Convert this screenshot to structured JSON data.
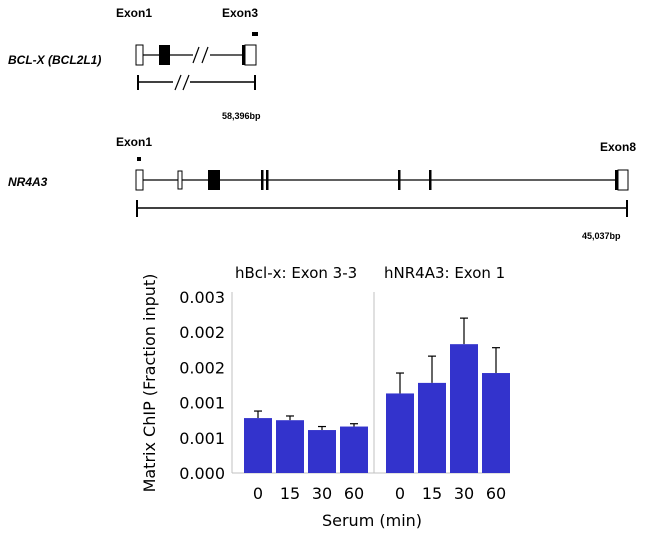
{
  "genes": {
    "bclx": {
      "name": "BCL-X (BCL2L1)",
      "exon_left_label": "Exon1",
      "exon_right_label": "Exon3",
      "length_label": "58,396bp"
    },
    "nr4a3": {
      "name": "NR4A3",
      "exon_left_label": "Exon1",
      "exon_right_label": "Exon8",
      "length_label": "45,037bp"
    }
  },
  "chart_data": {
    "type": "bar",
    "ylabel": "Matrix ChIP (Fraction input)",
    "xlabel": "Serum (min)",
    "y_tick_labels": [
      "0.000",
      "0.001",
      "0.001",
      "0.002",
      "0.002",
      "0.003"
    ],
    "ylim": [
      0,
      0.0025
    ],
    "bar_color": "#3333cc",
    "panels": [
      {
        "title": "hBcl-x: Exon 3-3",
        "categories": [
          "0",
          "15",
          "30",
          "60"
        ],
        "values": [
          0.00078,
          0.00075,
          0.00061,
          0.00066
        ],
        "errors": [
          0.0001,
          6e-05,
          5e-05,
          4e-05
        ]
      },
      {
        "title": "hNR4A3: Exon 1",
        "categories": [
          "0",
          "15",
          "30",
          "60"
        ],
        "values": [
          0.00113,
          0.00128,
          0.00183,
          0.00142
        ],
        "errors": [
          0.00029,
          0.00038,
          0.00037,
          0.00036
        ]
      }
    ]
  }
}
